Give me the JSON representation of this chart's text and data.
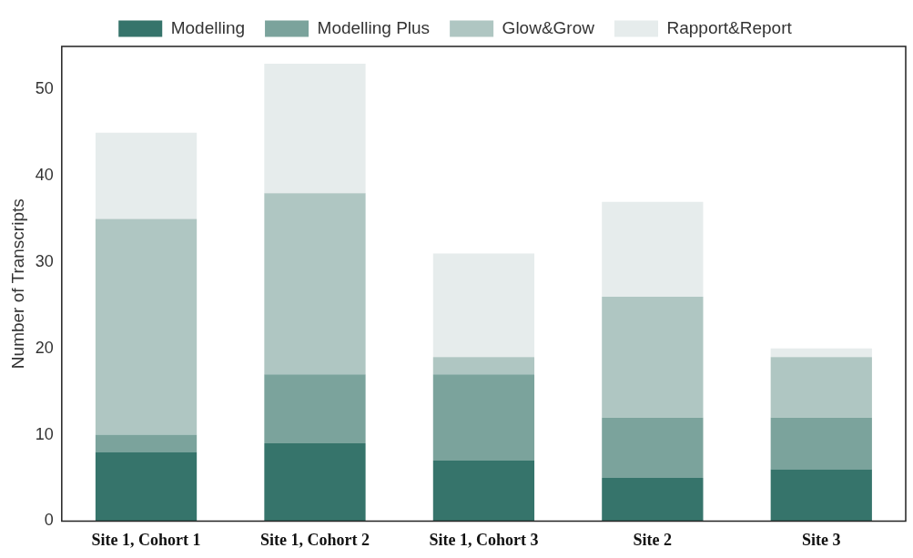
{
  "chart_data": {
    "type": "bar",
    "stacked": true,
    "ylabel": "Number of Transcripts",
    "categories": [
      "Site 1, Cohort 1",
      "Site 1, Cohort 2",
      "Site 1, Cohort 3",
      "Site 2",
      "Site 3"
    ],
    "series": [
      {
        "name": "Modelling",
        "color": "#36746b",
        "values": [
          8,
          9,
          7,
          5,
          6
        ]
      },
      {
        "name": "Modelling Plus",
        "color": "#7ba39c",
        "values": [
          2,
          8,
          10,
          7,
          6
        ]
      },
      {
        "name": "Glow&Grow",
        "color": "#afc6c2",
        "values": [
          25,
          21,
          2,
          14,
          7
        ]
      },
      {
        "name": "Rapport&Report",
        "color": "#e6ecec",
        "values": [
          10,
          15,
          12,
          11,
          1
        ]
      }
    ],
    "ylim": [
      0,
      55
    ],
    "yticks": [
      0,
      10,
      20,
      30,
      40,
      50
    ],
    "grid": false,
    "legend": "top"
  }
}
